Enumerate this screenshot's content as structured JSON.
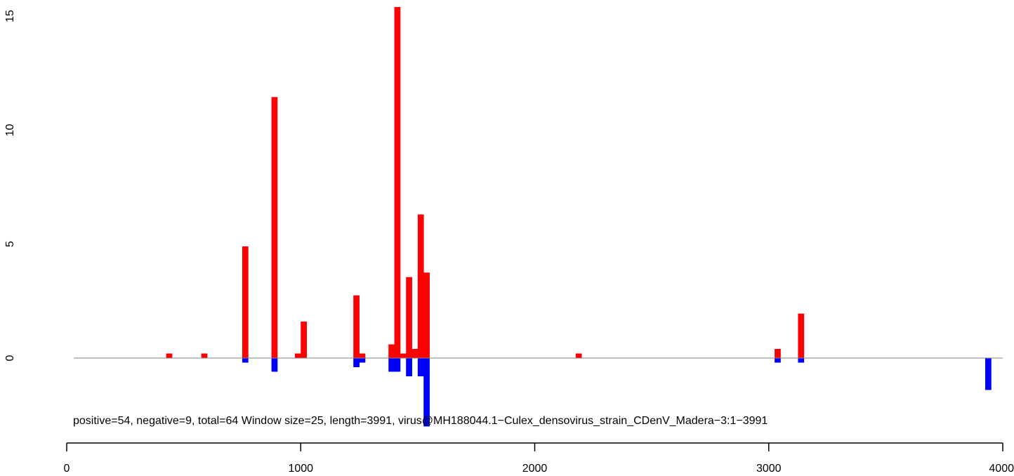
{
  "chart_data": {
    "type": "bar",
    "annotation": "positive=54, negative=9, total=64    Window size=25, length=3991, virus@MH188044.1−Culex_densovirus_strain_CDenV_Madera−3:1−3991",
    "xlim": [
      0,
      4000
    ],
    "ylim": [
      -3,
      15.4
    ],
    "x_ticks": [
      "0",
      "1000",
      "2000",
      "3000",
      "4000"
    ],
    "y_ticks": [
      "0",
      "5",
      "10",
      "15"
    ],
    "bin_width": 25,
    "colors": {
      "positive": "#ff0000",
      "negative": "#0000ff",
      "baseline": "#808080"
    },
    "series": [
      {
        "name": "positive",
        "x": [
          425,
          575,
          750,
          875,
          975,
          1000,
          1225,
          1250,
          1375,
          1400,
          1425,
          1450,
          1475,
          1500,
          1525,
          2175,
          3025,
          3125
        ],
        "values": [
          0.2,
          0.2,
          4.9,
          11.45,
          0.2,
          1.6,
          2.75,
          0.2,
          0.6,
          15.4,
          0.2,
          3.55,
          0.4,
          6.3,
          3.75,
          0.2,
          0.4,
          1.95
        ]
      },
      {
        "name": "negative",
        "x": [
          750,
          875,
          1225,
          1250,
          1375,
          1400,
          1450,
          1500,
          1525,
          3025,
          3125,
          3925
        ],
        "values": [
          -0.2,
          -0.6,
          -0.4,
          -0.2,
          -0.6,
          -0.6,
          -0.8,
          -0.8,
          -3.0,
          -0.2,
          -0.2,
          -1.4
        ]
      }
    ]
  }
}
